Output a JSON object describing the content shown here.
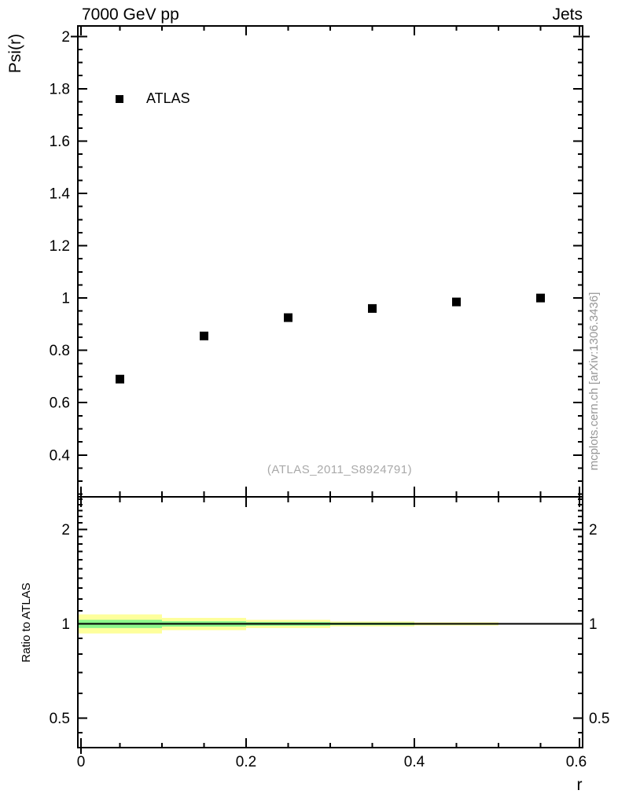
{
  "figure": {
    "watermark": "(ATLAS_2011_S8924791)",
    "side_note": "mcplots.cern.ch [arXiv:1306.3436]"
  },
  "chart_data": [
    {
      "type": "scatter",
      "panel": "main",
      "title_left": "7000 GeV pp",
      "title_right": "Jets",
      "ylabel": "Psi(r)",
      "xlabel": "r",
      "grid": false,
      "xlim": [
        0,
        0.6
      ],
      "ylim": [
        0.24,
        2.04
      ],
      "x_major_ticks": [
        0,
        0.2,
        0.4,
        0.6
      ],
      "x_tick_labels": [
        "0",
        "0.2",
        "0.4",
        "0.6"
      ],
      "x_minor_step": 0.05,
      "y_major_ticks": [
        0.4,
        0.6,
        0.8,
        1,
        1.2,
        1.4,
        1.6,
        1.8,
        2
      ],
      "y_tick_labels": [
        "0.4",
        "0.6",
        "0.8",
        "1",
        "1.2",
        "1.4",
        "1.6",
        "1.8",
        "2"
      ],
      "y_minor_step": 0.05,
      "legend": {
        "position": "top-left",
        "entries": [
          {
            "label": "ATLAS",
            "marker": "filled-square",
            "color": "#000000"
          }
        ]
      },
      "series": [
        {
          "name": "ATLAS",
          "marker": "filled-square",
          "color": "#000000",
          "x": [
            0.05,
            0.15,
            0.25,
            0.35,
            0.45,
            0.55
          ],
          "y": [
            0.69,
            0.855,
            0.925,
            0.96,
            0.985,
            1.0
          ]
        }
      ]
    },
    {
      "type": "area",
      "panel": "ratio",
      "ylabel": "Ratio to ATLAS",
      "yscale": "log",
      "ylim": [
        0.403,
        2.542
      ],
      "y_major_ticks": [
        0.5,
        1,
        2
      ],
      "y_tick_labels": [
        "0.5",
        "1",
        "2"
      ],
      "y_minor_ticks": [
        0.45,
        0.6,
        0.7,
        0.8,
        0.9,
        1.1,
        1.2,
        1.3,
        1.4,
        1.5,
        1.6,
        1.7,
        1.8,
        1.9,
        2.1,
        2.2,
        2.3,
        2.4,
        2.5
      ],
      "reference_line": 1,
      "band_colors": {
        "total": "#feff9c",
        "stat": "#8bf68b"
      },
      "bands": [
        {
          "x0": 0.0,
          "x1": 0.1,
          "total": [
            0.932,
            1.072
          ],
          "stat": [
            0.97,
            1.03
          ]
        },
        {
          "x0": 0.1,
          "x1": 0.2,
          "total": [
            0.955,
            1.045
          ],
          "stat": [
            0.98,
            1.02
          ]
        },
        {
          "x0": 0.2,
          "x1": 0.3,
          "total": [
            0.97,
            1.03
          ],
          "stat": [
            0.986,
            1.014
          ]
        },
        {
          "x0": 0.3,
          "x1": 0.4,
          "total": [
            0.982,
            1.018
          ],
          "stat": [
            0.991,
            1.009
          ]
        },
        {
          "x0": 0.4,
          "x1": 0.5,
          "total": [
            0.988,
            1.012
          ],
          "stat": [
            0.994,
            1.006
          ]
        },
        {
          "x0": 0.5,
          "x1": 0.6,
          "total": [
            0.995,
            1.005
          ],
          "stat": [
            0.9975,
            1.0025
          ]
        }
      ]
    }
  ]
}
